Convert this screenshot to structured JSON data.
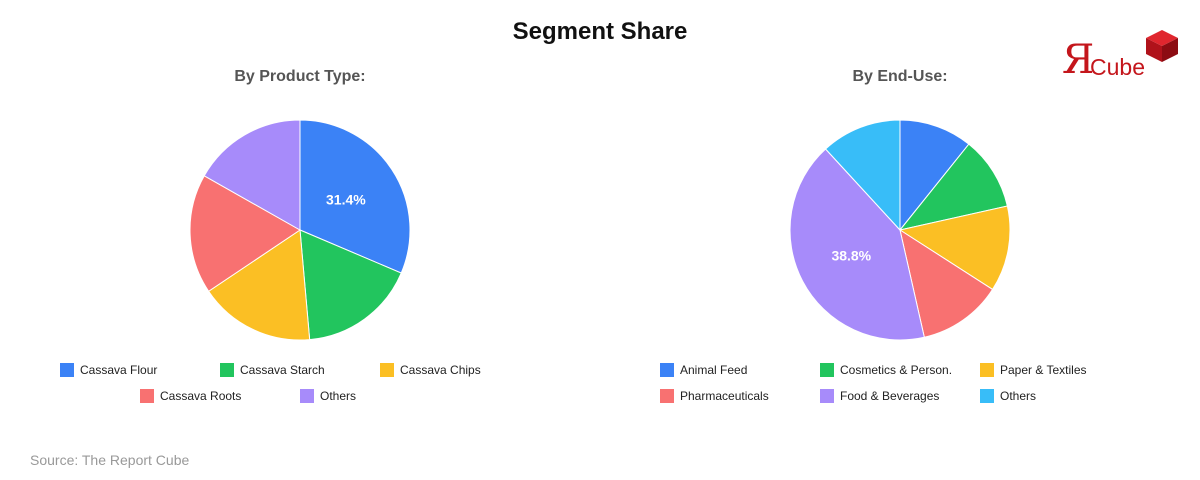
{
  "title": "Segment Share",
  "logo": {
    "letter": "Я",
    "text": "Cube",
    "color": "#c4161c"
  },
  "source": "Source: The Report Cube",
  "chart_data": [
    {
      "type": "pie",
      "title": "By Product Type:",
      "categories": [
        "Cassava Flour",
        "Cassava Starch",
        "Cassava Chips",
        "Cassava Roots",
        "Others"
      ],
      "values": [
        31.4,
        17.2,
        17.0,
        17.6,
        16.8
      ],
      "colors": [
        "#3b82f6",
        "#22c55e",
        "#fbbf24",
        "#f87171",
        "#a78bfa"
      ],
      "data_labels": [
        "31.4%",
        "",
        "",
        "",
        ""
      ],
      "legend": "bottom",
      "start_angle": "top, clockwise"
    },
    {
      "type": "pie",
      "title": "By End-Use:",
      "categories": [
        "Animal Feed",
        "Cosmetics & Person.",
        "Paper & Textiles",
        "Pharmaceuticals",
        "Food & Beverages",
        "Others"
      ],
      "values": [
        10.0,
        10.0,
        11.7,
        11.5,
        38.8,
        11.0
      ],
      "colors": [
        "#3b82f6",
        "#22c55e",
        "#fbbf24",
        "#f87171",
        "#a78bfa",
        "#38bdf8"
      ],
      "data_labels": [
        "",
        "",
        "",
        "",
        "38.8%",
        ""
      ],
      "legend": "bottom",
      "start_angle": "top, clockwise"
    }
  ]
}
